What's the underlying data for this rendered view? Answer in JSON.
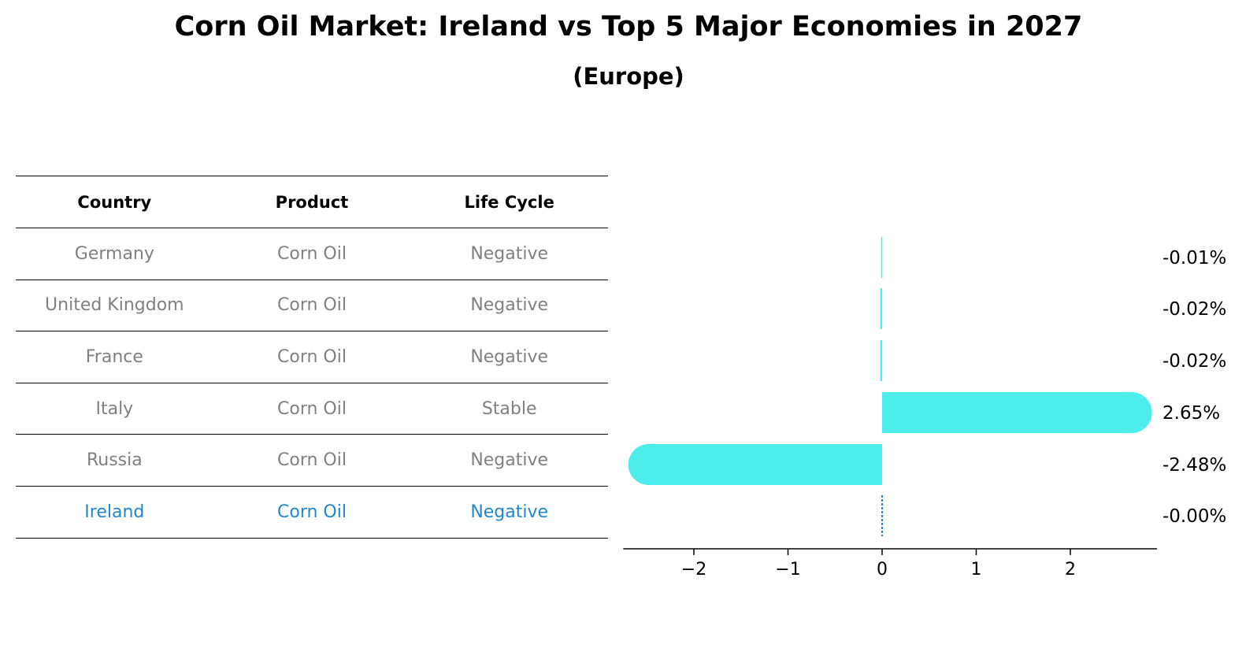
{
  "title": "Corn Oil Market: Ireland vs Top 5 Major Economies in 2027",
  "subtitle": "(Europe)",
  "table": {
    "headers": [
      "Country",
      "Product",
      "Life Cycle"
    ],
    "rows": [
      {
        "country": "Germany",
        "product": "Corn Oil",
        "life_cycle": "Negative"
      },
      {
        "country": "United Kingdom",
        "product": "Corn Oil",
        "life_cycle": "Negative"
      },
      {
        "country": "France",
        "product": "Corn Oil",
        "life_cycle": "Negative"
      },
      {
        "country": "Italy",
        "product": "Corn Oil",
        "life_cycle": "Stable"
      },
      {
        "country": "Russia",
        "product": "Corn Oil",
        "life_cycle": "Negative"
      },
      {
        "country": "Ireland",
        "product": "Corn Oil",
        "life_cycle": "Negative"
      }
    ]
  },
  "colors": {
    "bar": "#4dedec",
    "highlight": "#1f87d0",
    "muted_text": "#808080"
  },
  "chart_data": {
    "type": "bar",
    "orientation": "horizontal",
    "categories": [
      "Germany",
      "United Kingdom",
      "France",
      "Italy",
      "Russia",
      "Ireland"
    ],
    "values": [
      -0.01,
      -0.02,
      -0.02,
      2.65,
      -2.48,
      -0.0
    ],
    "value_labels": [
      "-0.01%",
      "-0.02%",
      "-0.02%",
      "2.65%",
      "-2.48%",
      "-0.00%"
    ],
    "xticks": [
      -2,
      -1,
      0,
      1,
      2
    ],
    "xtick_labels": [
      "−2",
      "−1",
      "0",
      "1",
      "2"
    ],
    "xlim": [
      -2.75,
      2.92
    ],
    "grid": false
  }
}
